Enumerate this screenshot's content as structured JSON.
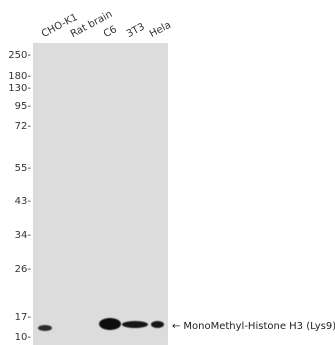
{
  "lanes": [
    {
      "label": "CHO-K1"
    },
    {
      "label": "Rat brain"
    },
    {
      "label": "C6"
    },
    {
      "label": "3T3"
    },
    {
      "label": "Hela"
    }
  ],
  "markers": [
    {
      "label": "250-"
    },
    {
      "label": "180-"
    },
    {
      "label": "130-"
    },
    {
      "label": "95-"
    },
    {
      "label": "72-"
    },
    {
      "label": "55-"
    },
    {
      "label": "43-"
    },
    {
      "label": "34-"
    },
    {
      "label": "26-"
    },
    {
      "label": "17-"
    },
    {
      "label": "10-"
    }
  ],
  "target": {
    "arrow": "←",
    "label": "MonoMethyl-Histone H3 (Lys9)"
  },
  "colors": {
    "membrane": "#dcdcdc",
    "band": "#0d0d0d"
  }
}
